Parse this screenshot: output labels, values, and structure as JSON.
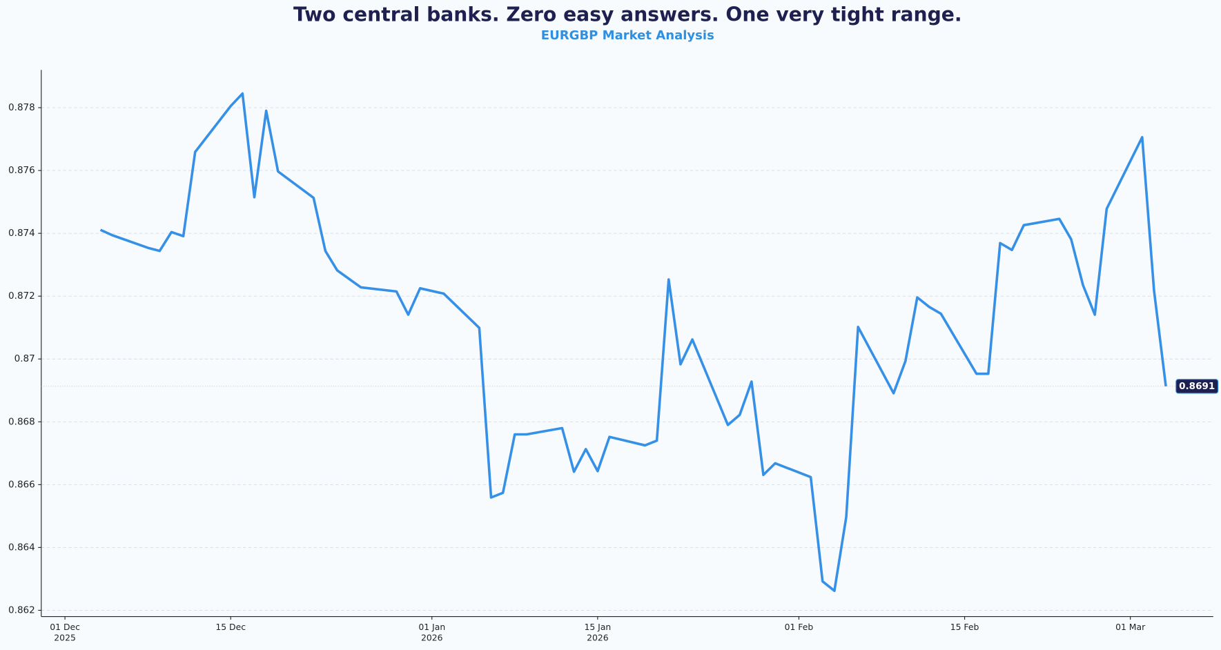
{
  "chart_data": {
    "type": "line",
    "title": "Two central banks. Zero easy answers. One very tight range.",
    "subtitle": "EURGBP Market Analysis",
    "x": [
      "2025-12-04",
      "2025-12-05",
      "2025-12-08",
      "2025-12-09",
      "2025-12-10",
      "2025-12-11",
      "2025-12-12",
      "2025-12-15",
      "2025-12-16",
      "2025-12-17",
      "2025-12-18",
      "2025-12-19",
      "2025-12-22",
      "2025-12-23",
      "2025-12-24",
      "2025-12-26",
      "2025-12-29",
      "2025-12-30",
      "2025-12-31",
      "2026-01-02",
      "2026-01-05",
      "2026-01-06",
      "2026-01-07",
      "2026-01-08",
      "2026-01-09",
      "2026-01-12",
      "2026-01-13",
      "2026-01-14",
      "2026-01-15",
      "2026-01-16",
      "2026-01-19",
      "2026-01-20",
      "2026-01-21",
      "2026-01-22",
      "2026-01-23",
      "2026-01-26",
      "2026-01-27",
      "2026-01-28",
      "2026-01-29",
      "2026-01-30",
      "2026-02-02",
      "2026-02-03",
      "2026-02-04",
      "2026-02-05",
      "2026-02-06",
      "2026-02-09",
      "2026-02-10",
      "2026-02-11",
      "2026-02-12",
      "2026-02-13",
      "2026-02-16",
      "2026-02-17",
      "2026-02-18",
      "2026-02-19",
      "2026-02-20",
      "2026-02-23",
      "2026-02-24",
      "2026-02-25",
      "2026-02-26",
      "2026-02-27",
      "2026-03-02",
      "2026-03-03",
      "2026-03-04"
    ],
    "series": [
      {
        "name": "EURGBP",
        "color": "#3590e6",
        "values": [
          0.87411,
          0.87394,
          0.87354,
          0.87344,
          0.87404,
          0.87391,
          0.87659,
          0.87805,
          0.87845,
          0.87515,
          0.8779,
          0.87597,
          0.87513,
          0.87344,
          0.87282,
          0.87228,
          0.87215,
          0.87141,
          0.87225,
          0.87208,
          0.87099,
          0.86559,
          0.86574,
          0.8676,
          0.8676,
          0.8678,
          0.86641,
          0.86713,
          0.86643,
          0.86752,
          0.86725,
          0.8674,
          0.87253,
          0.86983,
          0.87062,
          0.8679,
          0.86822,
          0.86928,
          0.86631,
          0.86668,
          0.86624,
          0.86292,
          0.86262,
          0.86497,
          0.87102,
          0.86891,
          0.86993,
          0.87196,
          0.87166,
          0.87144,
          0.86953,
          0.86953,
          0.87369,
          0.87347,
          0.87426,
          0.87446,
          0.87381,
          0.87235,
          0.87141,
          0.87478,
          0.87706,
          0.87218,
          0.86913
        ],
        "last_value_label": "0.8691"
      }
    ],
    "xlim": [
      "2025-11-29",
      "2026-03-08"
    ],
    "xticks": [
      {
        "value": "2025-12-01",
        "label": [
          "01 Dec",
          "2025"
        ]
      },
      {
        "value": "2025-12-15",
        "label": [
          "15 Dec"
        ]
      },
      {
        "value": "2026-01-01",
        "label": [
          "01 Jan",
          "2026"
        ]
      },
      {
        "value": "2026-01-15",
        "label": [
          "15 Jan",
          "2026"
        ]
      },
      {
        "value": "2026-02-01",
        "label": [
          "01 Feb"
        ]
      },
      {
        "value": "2026-02-15",
        "label": [
          "15 Feb"
        ]
      },
      {
        "value": "2026-03-01",
        "label": [
          "01 Mar"
        ]
      }
    ],
    "ylim": [
      0.8618,
      0.8792
    ],
    "yticks": [
      0.862,
      0.864,
      0.866,
      0.868,
      0.87,
      0.872,
      0.874,
      0.876,
      0.878
    ],
    "grid": true
  }
}
